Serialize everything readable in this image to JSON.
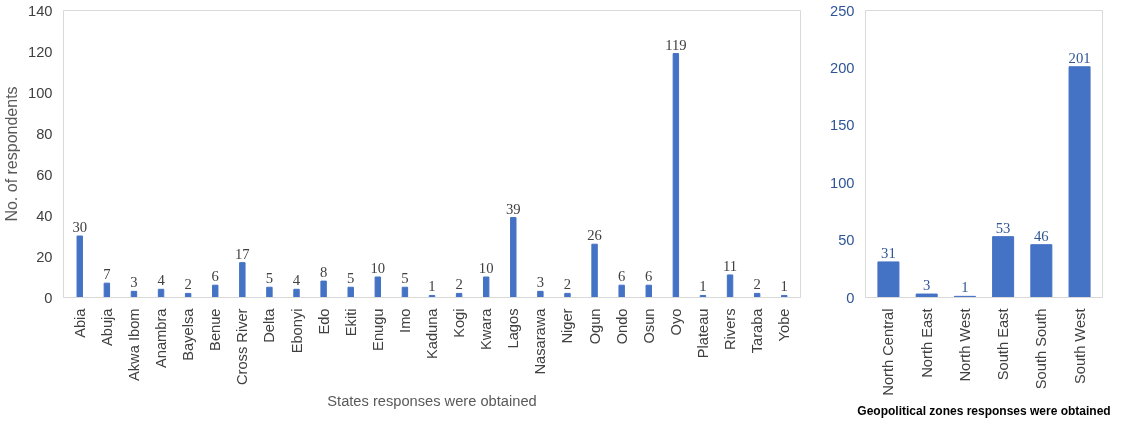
{
  "chart_data": [
    {
      "type": "bar",
      "xlabel": "States responses were obtained",
      "ylabel": "No. of respondents",
      "categories": [
        "Abia",
        "Abuja",
        "Akwa Ibom",
        "Anambra",
        "Bayelsa",
        "Benue",
        "Cross River",
        "Delta",
        "Ebonyi",
        "Edo",
        "Ekiti",
        "Enugu",
        "Imo",
        "Kaduna",
        "Kogi",
        "Kwara",
        "Lagos",
        "Nasarawa",
        "Niger",
        "Ogun",
        "Ondo",
        "Osun",
        "Oyo",
        "Plateau",
        "Rivers",
        "Taraba",
        "Yobe"
      ],
      "values": [
        30,
        7,
        3,
        4,
        2,
        6,
        17,
        5,
        4,
        8,
        5,
        10,
        5,
        1,
        2,
        10,
        39,
        3,
        2,
        26,
        6,
        6,
        119,
        1,
        11,
        2,
        1
      ],
      "color": "#4472c4",
      "ylim": [
        0,
        140
      ],
      "yticks": [
        0,
        20,
        40,
        60,
        80,
        100,
        120,
        140
      ],
      "data_labels": true,
      "grid": false
    },
    {
      "type": "bar",
      "xlabel": "Geopolitical zones responses were obtained",
      "categories": [
        "North Central",
        "North East",
        "North West",
        "South East",
        "South South",
        "South West"
      ],
      "values": [
        31,
        3,
        1,
        53,
        46,
        201
      ],
      "color": "#4472c4",
      "ylim": [
        0,
        250
      ],
      "yticks": [
        0,
        50,
        100,
        150,
        200,
        250
      ],
      "data_labels": true,
      "grid": false
    }
  ]
}
